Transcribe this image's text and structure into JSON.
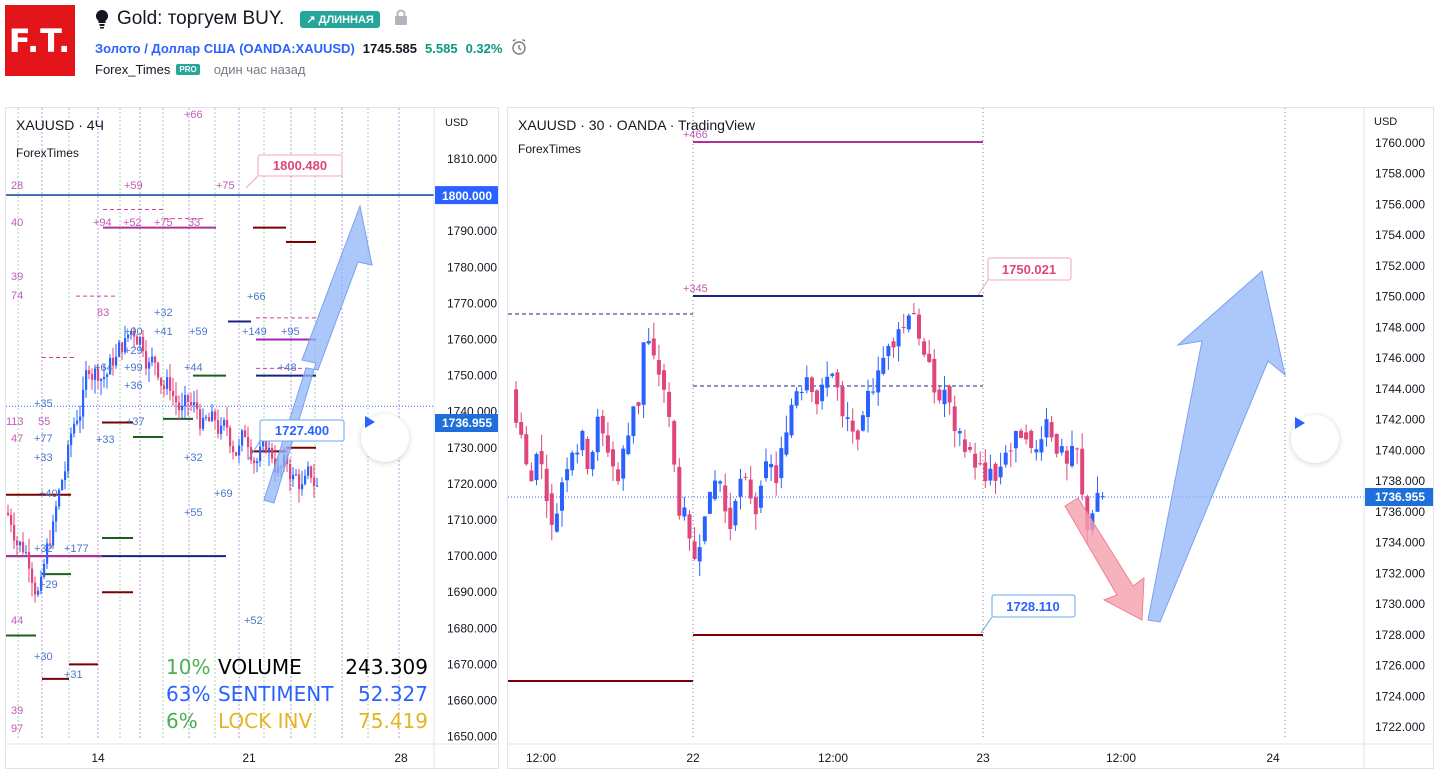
{
  "header": {
    "logo_text": "F.T.",
    "title": "Gold: торгуем BUY.",
    "badge": "↗ ДЛИННАЯ",
    "symbol_link": "Золото / Доллар США (OANDA:XAUUSD)",
    "price": "1745.585",
    "change": "5.585",
    "change_pct": "0.32%",
    "author": "Forex_Times",
    "pro_badge": "PRO",
    "time_ago": "один час назад"
  },
  "left_chart": {
    "title": "XAUUSD · 4Ч",
    "subtitle": "ForexTimes",
    "currency": "USD",
    "price_levels": [
      {
        "price": 1810,
        "label": "1810.000"
      },
      {
        "price": 1800,
        "label": "1800.000"
      },
      {
        "price": 1790,
        "label": "1790.000"
      },
      {
        "price": 1780,
        "label": "1780.000"
      },
      {
        "price": 1770,
        "label": "1770.000"
      },
      {
        "price": 1760,
        "label": "1760.000"
      },
      {
        "price": 1750,
        "label": "1750.000"
      },
      {
        "price": 1740,
        "label": "1740.000"
      },
      {
        "price": 1730,
        "label": "1730.000"
      },
      {
        "price": 1720,
        "label": "1720.000"
      },
      {
        "price": 1710,
        "label": "1710.000"
      },
      {
        "price": 1700,
        "label": "1700.000"
      },
      {
        "price": 1690,
        "label": "1690.000"
      },
      {
        "price": 1680,
        "label": "1680.000"
      },
      {
        "price": 1670,
        "label": "1670.000"
      },
      {
        "price": 1660,
        "label": "1660.000"
      },
      {
        "price": 1650,
        "label": "1650.000"
      }
    ],
    "x_labels": [
      "14",
      "21",
      "28"
    ],
    "current_price_tag": "1736.955",
    "level_tag_blue": "1800.000",
    "callout_top": "1800.480",
    "callout_bottom": "1727.400",
    "stats": [
      {
        "pct": "10%",
        "label": "VOLUME",
        "value": "243.309",
        "color": "#4caf50",
        "label_color": "#000000"
      },
      {
        "pct": "63%",
        "label": "SENTIMENT",
        "value": "52.327",
        "color": "#2962ff",
        "label_color": "#2962ff"
      },
      {
        "pct": "6%",
        "label": "LOCK INV",
        "value": "75.419",
        "color": "#4caf50",
        "label_color": "#e6b422"
      }
    ],
    "annotations": [
      "+66",
      "28",
      "+59",
      "+75",
      "40",
      "+94",
      "+52",
      "+75",
      "33",
      "39",
      "74",
      "83",
      "+32",
      "+90",
      "+41",
      "+59",
      "+66",
      "+149",
      "+95",
      "+29",
      "+64",
      "+99",
      "+44",
      "+36",
      "+48",
      "+35",
      "113",
      "55",
      "+37",
      "47",
      "+77",
      "+33",
      "+33",
      "+32",
      "+40",
      "+69",
      "+55",
      "+32",
      "+177",
      "+29",
      "44",
      "+52",
      "+30",
      "+31",
      "39",
      "97"
    ]
  },
  "right_chart": {
    "title": "XAUUSD · 30 · OANDA · TradingView",
    "subtitle": "ForexTimes",
    "currency": "USD",
    "price_levels": [
      {
        "price": 1760,
        "label": "1760.000"
      },
      {
        "price": 1758,
        "label": "1758.000"
      },
      {
        "price": 1756,
        "label": "1756.000"
      },
      {
        "price": 1754,
        "label": "1754.000"
      },
      {
        "price": 1752,
        "label": "1752.000"
      },
      {
        "price": 1750,
        "label": "1750.000"
      },
      {
        "price": 1748,
        "label": "1748.000"
      },
      {
        "price": 1746,
        "label": "1746.000"
      },
      {
        "price": 1744,
        "label": "1744.000"
      },
      {
        "price": 1742,
        "label": "1742.000"
      },
      {
        "price": 1740,
        "label": "1740.000"
      },
      {
        "price": 1738,
        "label": "1738.000"
      },
      {
        "price": 1736,
        "label": "1736.000"
      },
      {
        "price": 1734,
        "label": "1734.000"
      },
      {
        "price": 1732,
        "label": "1732.000"
      },
      {
        "price": 1730,
        "label": "1730.000"
      },
      {
        "price": 1728,
        "label": "1728.000"
      },
      {
        "price": 1726,
        "label": "1726.000"
      },
      {
        "price": 1724,
        "label": "1724.000"
      },
      {
        "price": 1722,
        "label": "1722.000"
      }
    ],
    "x_labels": [
      "12:00",
      "22",
      "12:00",
      "23",
      "12:00",
      "24"
    ],
    "current_price_tag": "1736.955",
    "callout_top": "1750.021",
    "callout_bottom": "1728.110",
    "annotations": [
      "+466",
      "+345"
    ]
  },
  "colors": {
    "up": "#2962ff",
    "down": "#e0457b",
    "accent_green": "#26a69a",
    "brand_red": "#e3151a"
  },
  "icons": [
    "lightbulb-icon",
    "trend-up-icon",
    "lock-icon",
    "alarm-clock-icon",
    "play-icon"
  ]
}
